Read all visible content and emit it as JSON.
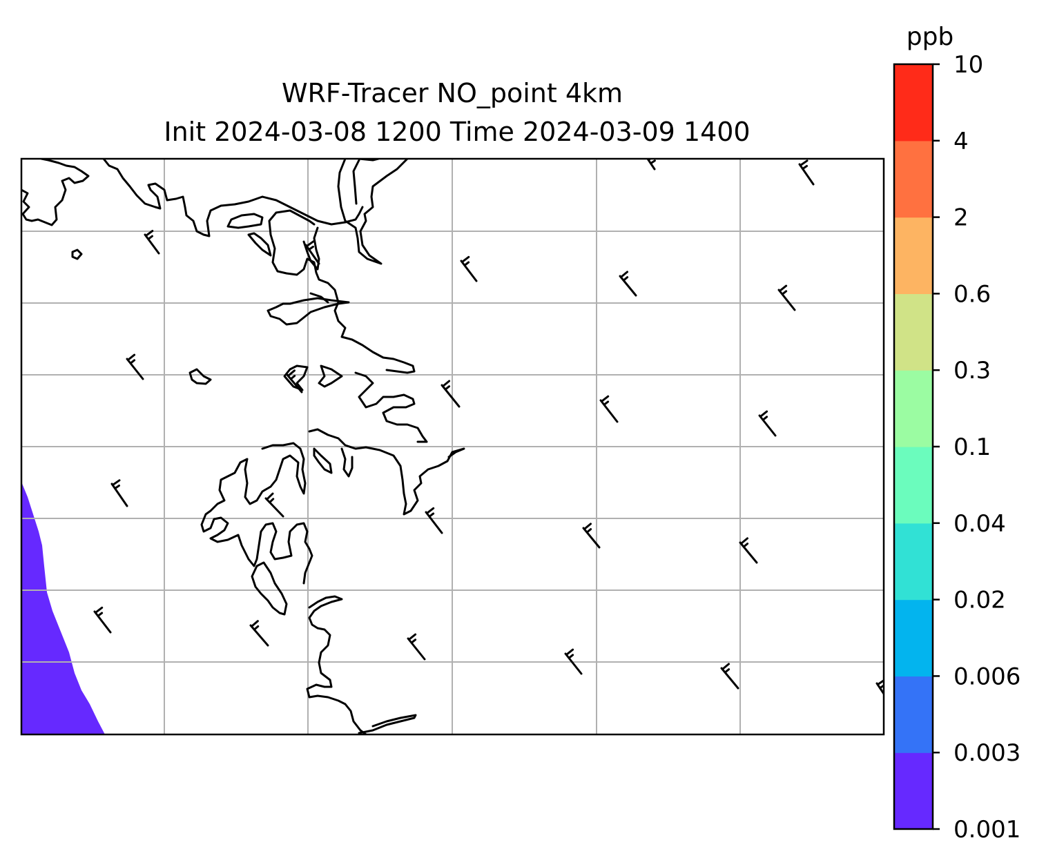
{
  "title": {
    "line1": "WRF-Tracer NO_point 4km",
    "line2": "Init 2024-03-08 1200 Time 2024-03-09 1400"
  },
  "colorbar": {
    "unit": "ppb",
    "levels": [
      "0.001",
      "0.003",
      "0.006",
      "0.02",
      "0.04",
      "0.1",
      "0.3",
      "0.6",
      "2",
      "4",
      "10"
    ],
    "colors": [
      "#6629ff",
      "#3473f7",
      "#03b4ee",
      "#31e1d5",
      "#6bfcbd",
      "#9bfca2",
      "#d0e387",
      "#fdb462",
      "#ff7140",
      "#ff2b19"
    ]
  },
  "map": {
    "plume_color": "#6629ff",
    "coastline_color": "#000000",
    "grid_color": "#b0b0b0"
  }
}
